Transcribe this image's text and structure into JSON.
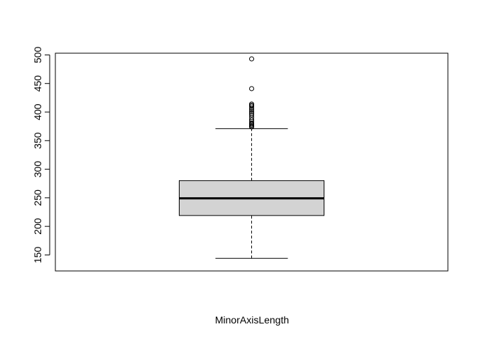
{
  "chart_data": {
    "type": "boxplot",
    "title": "",
    "xlabel": "MinorAxisLength",
    "ylabel": "",
    "ylim": [
      122,
      503
    ],
    "yticks": [
      150,
      200,
      250,
      300,
      350,
      400,
      450,
      500
    ],
    "grid": false,
    "legend": "none",
    "box": {
      "whisker_low": 144,
      "q1": 219,
      "median": 249,
      "q3": 280,
      "whisker_high": 371,
      "fill_color": "#d3d3d3",
      "line_color": "#000000"
    },
    "outliers": [
      374,
      375,
      377,
      379,
      381,
      384,
      387,
      391,
      395,
      398,
      401,
      404,
      407,
      410,
      412,
      414,
      441,
      493
    ]
  }
}
